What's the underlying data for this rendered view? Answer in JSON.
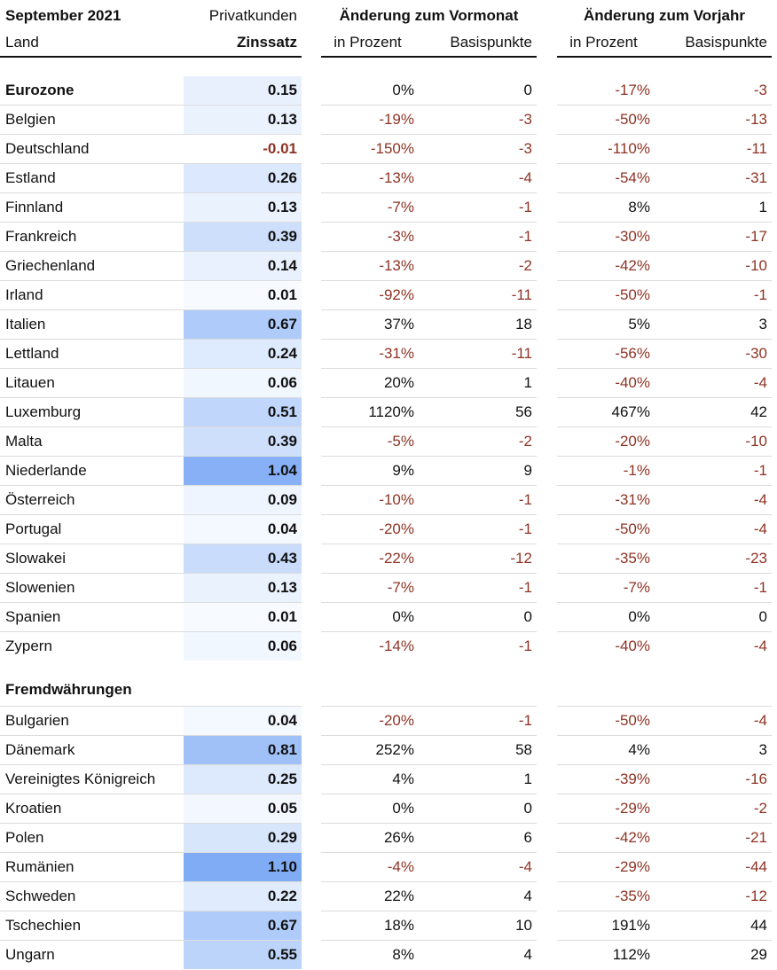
{
  "header": {
    "period": "September 2021",
    "segment": "Privatkunden",
    "land": "Land",
    "rate": "Zinssatz",
    "group_month": "Änderung zum Vormonat",
    "group_year": "Änderung zum Vorjahr",
    "columns": [
      "in Prozent",
      "Basispunkte",
      "in Prozent",
      "Basispunkte"
    ]
  },
  "sections": [
    {
      "rows": [
        [
          "Eurozone",
          "0.15",
          "0%",
          "0",
          "-17%",
          "-3"
        ],
        [
          "Belgien",
          "0.13",
          "-19%",
          "-3",
          "-50%",
          "-13"
        ],
        [
          "Deutschland",
          "-0.01",
          "-150%",
          "-3",
          "-110%",
          "-11"
        ],
        [
          "Estland",
          "0.26",
          "-13%",
          "-4",
          "-54%",
          "-31"
        ],
        [
          "Finnland",
          "0.13",
          "-7%",
          "-1",
          "8%",
          "1"
        ],
        [
          "Frankreich",
          "0.39",
          "-3%",
          "-1",
          "-30%",
          "-17"
        ],
        [
          "Griechenland",
          "0.14",
          "-13%",
          "-2",
          "-42%",
          "-10"
        ],
        [
          "Irland",
          "0.01",
          "-92%",
          "-11",
          "-50%",
          "-1"
        ],
        [
          "Italien",
          "0.67",
          "37%",
          "18",
          "5%",
          "3"
        ],
        [
          "Lettland",
          "0.24",
          "-31%",
          "-11",
          "-56%",
          "-30"
        ],
        [
          "Litauen",
          "0.06",
          "20%",
          "1",
          "-40%",
          "-4"
        ],
        [
          "Luxemburg",
          "0.51",
          "1120%",
          "56",
          "467%",
          "42"
        ],
        [
          "Malta",
          "0.39",
          "-5%",
          "-2",
          "-20%",
          "-10"
        ],
        [
          "Niederlande",
          "1.04",
          "9%",
          "9",
          "-1%",
          "-1"
        ],
        [
          "Österreich",
          "0.09",
          "-10%",
          "-1",
          "-31%",
          "-4"
        ],
        [
          "Portugal",
          "0.04",
          "-20%",
          "-1",
          "-50%",
          "-4"
        ],
        [
          "Slowakei",
          "0.43",
          "-22%",
          "-12",
          "-35%",
          "-23"
        ],
        [
          "Slowenien",
          "0.13",
          "-7%",
          "-1",
          "-7%",
          "-1"
        ],
        [
          "Spanien",
          "0.01",
          "0%",
          "0",
          "0%",
          "0"
        ],
        [
          "Zypern",
          "0.06",
          "-14%",
          "-1",
          "-40%",
          "-4"
        ]
      ]
    },
    {
      "title": "Fremdwährungen",
      "rows": [
        [
          "Bulgarien",
          "0.04",
          "-20%",
          "-1",
          "-50%",
          "-4"
        ],
        [
          "Dänemark",
          "0.81",
          "252%",
          "58",
          "4%",
          "3"
        ],
        [
          "Vereinigtes Königreich",
          "0.25",
          "4%",
          "1",
          "-39%",
          "-16"
        ],
        [
          "Kroatien",
          "0.05",
          "0%",
          "0",
          "-29%",
          "-2"
        ],
        [
          "Polen",
          "0.29",
          "26%",
          "6",
          "-42%",
          "-21"
        ],
        [
          "Rumänien",
          "1.10",
          "-4%",
          "-4",
          "-29%",
          "-44"
        ],
        [
          "Schweden",
          "0.22",
          "22%",
          "4",
          "-35%",
          "-12"
        ],
        [
          "Tschechien",
          "0.67",
          "18%",
          "10",
          "191%",
          "44"
        ],
        [
          "Ungarn",
          "0.55",
          "8%",
          "4",
          "112%",
          "29"
        ]
      ]
    }
  ]
}
